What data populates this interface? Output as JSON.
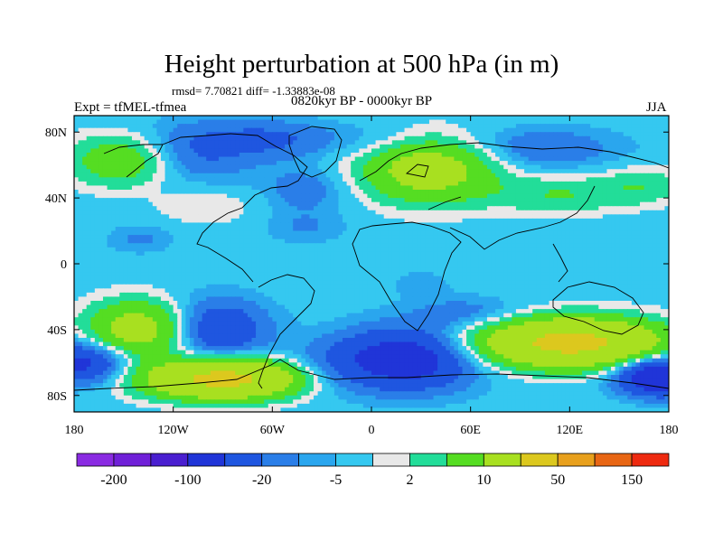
{
  "title": "Height perturbation at 500 hPa (in m)",
  "stats": "rmsd= 7.70821 diff= -1.33883e-08",
  "experiment": "Expt = tfMEL-tfmea",
  "period": "0820kyr BP - 0000kyr BP",
  "season": "JJA",
  "chart_data": {
    "type": "heatmap",
    "title": "Height perturbation at 500 hPa (in m)",
    "xlim": [
      -180,
      180
    ],
    "ylim": [
      -90,
      90
    ],
    "x_ticks": [
      {
        "value": -180,
        "label": "180"
      },
      {
        "value": -120,
        "label": "120W"
      },
      {
        "value": -60,
        "label": "60W"
      },
      {
        "value": 0,
        "label": "0"
      },
      {
        "value": 60,
        "label": "60E"
      },
      {
        "value": 120,
        "label": "120E"
      },
      {
        "value": 180,
        "label": "180"
      }
    ],
    "y_ticks": [
      {
        "value": 80,
        "label": "80N"
      },
      {
        "value": 40,
        "label": "40N"
      },
      {
        "value": 0,
        "label": "0"
      },
      {
        "value": -40,
        "label": "40S"
      },
      {
        "value": -80,
        "label": "80S"
      }
    ],
    "levels": [
      -200,
      -150,
      -100,
      -50,
      -20,
      -10,
      -5,
      -2,
      2,
      5,
      10,
      20,
      50,
      100,
      150,
      200
    ],
    "colorbar_labels": [
      {
        "index": 1,
        "label": "-200"
      },
      {
        "index": 3,
        "label": "-100"
      },
      {
        "index": 5,
        "label": "-20"
      },
      {
        "index": 7,
        "label": "-5"
      },
      {
        "index": 9,
        "label": "2"
      },
      {
        "index": 11,
        "label": "10"
      },
      {
        "index": 13,
        "label": "50"
      },
      {
        "index": 15,
        "label": "150"
      }
    ],
    "colors": [
      "#8a2be2",
      "#7020d8",
      "#4a1fd0",
      "#2035d8",
      "#1f56e0",
      "#2a7ee8",
      "#2aa6ee",
      "#35c8f0",
      "#e8e8e8",
      "#22dd99",
      "#55dd22",
      "#a8e020",
      "#dcc81e",
      "#e8a01c",
      "#e86614",
      "#ee2a10"
    ],
    "anomaly_centers": [
      {
        "lon": -150,
        "lat": 63,
        "value": 20,
        "sx": 22,
        "sy": 11
      },
      {
        "lon": -110,
        "lat": 68,
        "value": -12,
        "sx": 28,
        "sy": 13
      },
      {
        "lon": -60,
        "lat": 76,
        "value": -10,
        "sx": 25,
        "sy": 8
      },
      {
        "lon": -100,
        "lat": 35,
        "value": 5,
        "sx": 22,
        "sy": 8
      },
      {
        "lon": -40,
        "lat": 45,
        "value": -8,
        "sx": 18,
        "sy": 10
      },
      {
        "lon": 35,
        "lat": 58,
        "value": 30,
        "sx": 28,
        "sy": 14
      },
      {
        "lon": 10,
        "lat": 75,
        "value": -6,
        "sx": 30,
        "sy": 8
      },
      {
        "lon": 100,
        "lat": 70,
        "value": -10,
        "sx": 35,
        "sy": 9
      },
      {
        "lon": 115,
        "lat": 42,
        "value": 10,
        "sx": 30,
        "sy": 8
      },
      {
        "lon": 165,
        "lat": 48,
        "value": 8,
        "sx": 18,
        "sy": 8
      },
      {
        "lon": -140,
        "lat": 15,
        "value": -6,
        "sx": 14,
        "sy": 6
      },
      {
        "lon": -40,
        "lat": 22,
        "value": -5,
        "sx": 18,
        "sy": 7
      },
      {
        "lon": 30,
        "lat": -12,
        "value": -4,
        "sx": 12,
        "sy": 6
      },
      {
        "lon": -140,
        "lat": -40,
        "value": 30,
        "sx": 22,
        "sy": 12
      },
      {
        "lon": -95,
        "lat": -40,
        "value": -20,
        "sx": 22,
        "sy": 13
      },
      {
        "lon": -175,
        "lat": -60,
        "value": -25,
        "sx": 20,
        "sy": 9
      },
      {
        "lon": -90,
        "lat": -70,
        "value": 60,
        "sx": 32,
        "sy": 8
      },
      {
        "lon": -30,
        "lat": -65,
        "value": -6,
        "sx": 18,
        "sy": 10
      },
      {
        "lon": 20,
        "lat": -58,
        "value": -30,
        "sx": 30,
        "sy": 13
      },
      {
        "lon": 120,
        "lat": -48,
        "value": 60,
        "sx": 38,
        "sy": 10
      },
      {
        "lon": 175,
        "lat": -68,
        "value": -40,
        "sx": 18,
        "sy": 8
      },
      {
        "lon": 60,
        "lat": -30,
        "value": -8,
        "sx": 25,
        "sy": 7
      }
    ]
  }
}
